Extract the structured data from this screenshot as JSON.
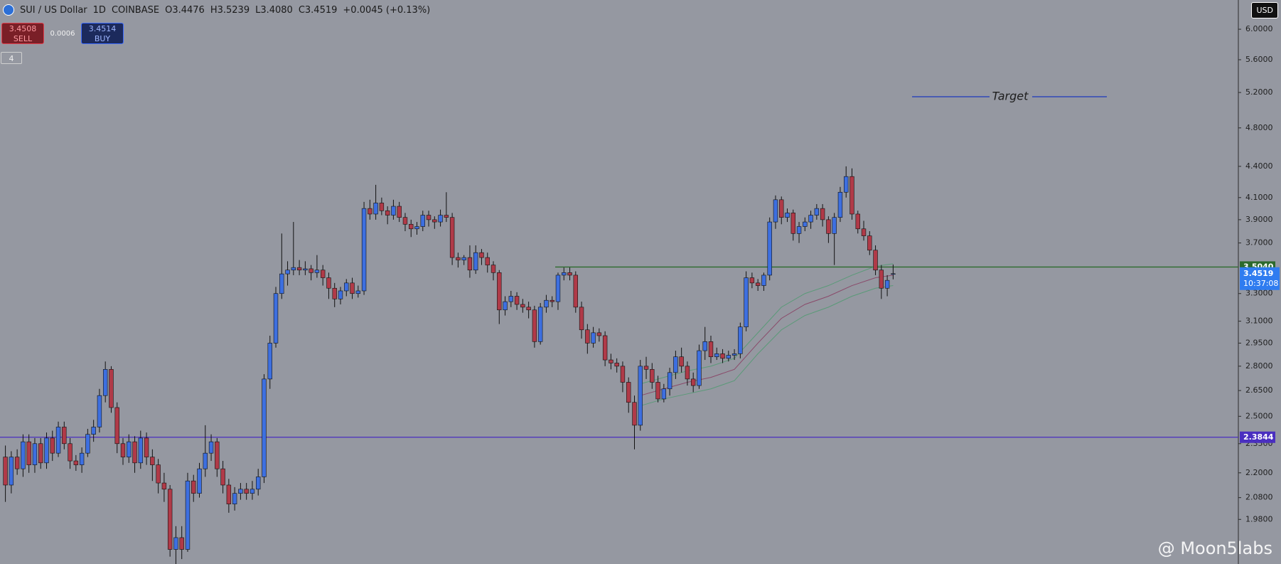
{
  "header": {
    "symbol": "SUI / US Dollar",
    "interval": "1D",
    "exchange": "COINBASE",
    "ohlc": [
      "O3.4476",
      "H3.5239",
      "L3.4080",
      "C3.4519"
    ],
    "change": "+0.0045 (+0.13%)"
  },
  "trade": {
    "sell": {
      "price": "3.4508",
      "label": "SELL"
    },
    "spread": "0.0006",
    "buy": {
      "price": "3.4514",
      "label": "BUY"
    }
  },
  "indicators_toggle": "4",
  "currency": "USD",
  "watermark": "@ Moon5labs",
  "chart_data": {
    "type": "candlestick",
    "log_scale": true,
    "grid": false,
    "ylim": [
      1.79,
      6.41
    ],
    "yticks": [
      {
        "value": 6,
        "label": "6.0000"
      },
      {
        "value": 5.6,
        "label": "5.6000"
      },
      {
        "value": 5.2,
        "label": "5.2000"
      },
      {
        "value": 4.8,
        "label": "4.8000"
      },
      {
        "value": 4.4,
        "label": "4.4000"
      },
      {
        "value": 4.1,
        "label": "4.1000"
      },
      {
        "value": 3.9,
        "label": "3.9000"
      },
      {
        "value": 3.7,
        "label": "3.7000"
      },
      {
        "value": 3.3,
        "label": "3.3000"
      },
      {
        "value": 3.1,
        "label": "3.1000"
      },
      {
        "value": 2.95,
        "label": "2.9500"
      },
      {
        "value": 2.8,
        "label": "2.8000"
      },
      {
        "value": 2.65,
        "label": "2.6500"
      },
      {
        "value": 2.5,
        "label": "2.5000"
      },
      {
        "value": 2.35,
        "label": "2.3500"
      },
      {
        "value": 2.2,
        "label": "2.2000"
      },
      {
        "value": 2.08,
        "label": "2.0800"
      },
      {
        "value": 1.98,
        "label": "1.9800"
      }
    ],
    "up_color": "#3d6fe0",
    "down_color": "#b03a48",
    "series": {
      "open": [
        2.28,
        2.14,
        2.28,
        2.22,
        2.36,
        2.24,
        2.35,
        2.25,
        2.38,
        2.3,
        2.44,
        2.35,
        2.26,
        2.24,
        2.3,
        2.4,
        2.44,
        2.62,
        2.78,
        2.55,
        2.35,
        2.28,
        2.36,
        2.25,
        2.38,
        2.28,
        2.24,
        2.15,
        2.12,
        1.85,
        1.9,
        1.85,
        2.16,
        2.1,
        2.22,
        2.3,
        2.36,
        2.22,
        2.14,
        2.05,
        2.1,
        2.12,
        2.1,
        2.12,
        2.18,
        2.72,
        2.95,
        3.3,
        3.45,
        3.48,
        3.5,
        3.48,
        3.49,
        3.46,
        3.48,
        3.42,
        3.34,
        3.26,
        3.32,
        3.38,
        3.3,
        3.32,
        4.0,
        3.95,
        4.05,
        3.98,
        3.94,
        4.02,
        3.92,
        3.86,
        3.82,
        3.84,
        3.94,
        3.9,
        3.88,
        3.94,
        3.92,
        3.58,
        3.56,
        3.58,
        3.48,
        3.62,
        3.58,
        3.52,
        3.46,
        3.18,
        3.24,
        3.28,
        3.22,
        3.2,
        3.18,
        2.96,
        3.2,
        3.25,
        3.24,
        3.44,
        3.46,
        3.44,
        3.2,
        3.04,
        2.95,
        3.02,
        3.0,
        2.84,
        2.82,
        2.8,
        2.7,
        2.58,
        2.45,
        2.8,
        2.78,
        2.7,
        2.6,
        2.66,
        2.76,
        2.86,
        2.8,
        2.72,
        2.68,
        2.9,
        2.96,
        2.86,
        2.88,
        2.85,
        2.87,
        2.88,
        3.06,
        3.42,
        3.38,
        3.36,
        3.44,
        3.88,
        4.08,
        3.92,
        3.96,
        3.78,
        3.84,
        3.88,
        3.94,
        4.0,
        3.9,
        3.78,
        3.92,
        4.15,
        4.3,
        3.95,
        3.82,
        3.76,
        3.64,
        3.48,
        3.34,
        3.4476
      ],
      "high": [
        2.34,
        2.31,
        2.32,
        2.4,
        2.4,
        2.38,
        2.38,
        2.41,
        2.42,
        2.47,
        2.47,
        2.38,
        2.29,
        2.33,
        2.43,
        2.48,
        2.66,
        2.83,
        2.8,
        2.58,
        2.38,
        2.4,
        2.39,
        2.42,
        2.41,
        2.32,
        2.27,
        2.2,
        2.14,
        1.95,
        1.95,
        2.2,
        2.19,
        2.25,
        2.45,
        2.4,
        2.38,
        2.26,
        2.17,
        2.13,
        2.15,
        2.15,
        2.16,
        2.22,
        2.75,
        3.0,
        3.35,
        3.78,
        3.55,
        3.88,
        3.56,
        3.55,
        3.52,
        3.6,
        3.52,
        3.46,
        3.38,
        3.35,
        3.41,
        3.42,
        3.36,
        4.06,
        4.08,
        4.22,
        4.1,
        4.02,
        4.08,
        4.06,
        3.96,
        3.9,
        3.88,
        3.98,
        3.98,
        3.93,
        3.99,
        4.15,
        3.96,
        3.62,
        3.6,
        3.68,
        3.68,
        3.65,
        3.62,
        3.55,
        3.48,
        3.28,
        3.32,
        3.31,
        3.26,
        3.24,
        3.21,
        3.23,
        3.29,
        3.28,
        3.46,
        3.5,
        3.5,
        3.47,
        3.24,
        3.08,
        3.06,
        3.05,
        3.03,
        2.88,
        2.85,
        2.83,
        2.73,
        2.62,
        2.84,
        2.86,
        2.82,
        2.74,
        2.69,
        2.79,
        2.9,
        2.92,
        2.83,
        2.76,
        2.94,
        3.06,
        3.0,
        2.92,
        2.91,
        2.9,
        2.91,
        3.09,
        3.47,
        3.46,
        3.41,
        3.46,
        3.92,
        4.12,
        4.11,
        4.0,
        3.99,
        3.88,
        3.92,
        3.98,
        4.04,
        4.04,
        3.93,
        3.96,
        4.2,
        4.4,
        4.38,
        3.98,
        3.89,
        3.8,
        3.68,
        3.52,
        3.44,
        3.5239
      ],
      "low": [
        2.06,
        2.1,
        2.19,
        2.18,
        2.2,
        2.2,
        2.22,
        2.22,
        2.26,
        2.28,
        2.32,
        2.22,
        2.21,
        2.2,
        2.28,
        2.36,
        2.41,
        2.58,
        2.52,
        2.3,
        2.24,
        2.25,
        2.2,
        2.22,
        2.24,
        2.16,
        2.1,
        2.06,
        1.82,
        1.78,
        1.81,
        1.84,
        2.06,
        2.08,
        2.18,
        2.26,
        2.18,
        2.1,
        2.01,
        2.02,
        2.07,
        2.07,
        2.07,
        2.09,
        2.15,
        2.66,
        2.92,
        3.26,
        3.36,
        3.44,
        3.44,
        3.44,
        3.4,
        3.42,
        3.36,
        3.26,
        3.2,
        3.22,
        3.28,
        3.26,
        3.27,
        3.29,
        3.9,
        3.9,
        3.94,
        3.86,
        3.9,
        3.88,
        3.8,
        3.75,
        3.77,
        3.8,
        3.84,
        3.82,
        3.84,
        3.88,
        3.52,
        3.5,
        3.52,
        3.42,
        3.45,
        3.52,
        3.46,
        3.4,
        3.08,
        3.14,
        3.2,
        3.18,
        3.16,
        3.12,
        2.92,
        2.94,
        3.16,
        3.2,
        3.18,
        3.4,
        3.4,
        3.16,
        2.98,
        2.88,
        2.92,
        2.96,
        2.8,
        2.78,
        2.76,
        2.64,
        2.52,
        2.32,
        2.42,
        2.72,
        2.66,
        2.58,
        2.58,
        2.62,
        2.72,
        2.76,
        2.68,
        2.64,
        2.66,
        2.84,
        2.82,
        2.84,
        2.82,
        2.83,
        2.84,
        2.85,
        3.03,
        3.34,
        3.32,
        3.32,
        3.4,
        3.82,
        3.86,
        3.88,
        3.72,
        3.7,
        3.8,
        3.82,
        3.9,
        3.84,
        3.7,
        3.52,
        3.88,
        4.1,
        3.9,
        3.78,
        3.72,
        3.6,
        3.44,
        3.26,
        3.28,
        3.408
      ],
      "close": [
        2.14,
        2.28,
        2.22,
        2.36,
        2.24,
        2.35,
        2.25,
        2.38,
        2.3,
        2.44,
        2.35,
        2.26,
        2.24,
        2.3,
        2.4,
        2.44,
        2.62,
        2.78,
        2.55,
        2.35,
        2.28,
        2.36,
        2.25,
        2.38,
        2.28,
        2.24,
        2.15,
        2.12,
        1.85,
        1.9,
        1.85,
        2.16,
        2.1,
        2.22,
        2.3,
        2.36,
        2.22,
        2.14,
        2.05,
        2.1,
        2.12,
        2.1,
        2.12,
        2.18,
        2.72,
        2.95,
        3.3,
        3.45,
        3.48,
        3.5,
        3.48,
        3.49,
        3.46,
        3.48,
        3.42,
        3.34,
        3.26,
        3.32,
        3.38,
        3.3,
        3.32,
        4.0,
        3.95,
        4.05,
        3.98,
        3.94,
        4.02,
        3.92,
        3.86,
        3.82,
        3.84,
        3.94,
        3.9,
        3.88,
        3.94,
        3.92,
        3.58,
        3.56,
        3.58,
        3.48,
        3.62,
        3.58,
        3.52,
        3.46,
        3.18,
        3.24,
        3.28,
        3.22,
        3.2,
        3.18,
        2.96,
        3.2,
        3.25,
        3.24,
        3.44,
        3.46,
        3.44,
        3.2,
        3.04,
        2.95,
        3.02,
        3.0,
        2.84,
        2.82,
        2.8,
        2.7,
        2.58,
        2.45,
        2.8,
        2.78,
        2.7,
        2.6,
        2.66,
        2.76,
        2.86,
        2.8,
        2.72,
        2.68,
        2.9,
        2.96,
        2.86,
        2.88,
        2.85,
        2.87,
        2.88,
        3.06,
        3.42,
        3.38,
        3.36,
        3.44,
        3.88,
        4.08,
        3.92,
        3.96,
        3.78,
        3.84,
        3.88,
        3.94,
        4.0,
        3.9,
        3.78,
        3.92,
        4.15,
        4.3,
        3.95,
        3.82,
        3.76,
        3.64,
        3.48,
        3.34,
        3.4,
        3.4519
      ]
    },
    "band": {
      "x": [
        108,
        112,
        116,
        120,
        124,
        128,
        132,
        136,
        140,
        144,
        148,
        151
      ],
      "upper": [
        2.69,
        2.73,
        2.77,
        2.8,
        2.85,
        3.02,
        3.2,
        3.3,
        3.36,
        3.44,
        3.51,
        3.53
      ],
      "middle": [
        2.62,
        2.66,
        2.7,
        2.73,
        2.78,
        2.95,
        3.12,
        3.22,
        3.28,
        3.36,
        3.42,
        3.44
      ],
      "lower": [
        2.56,
        2.6,
        2.63,
        2.66,
        2.71,
        2.88,
        3.04,
        3.14,
        3.2,
        3.28,
        3.34,
        3.36
      ],
      "edge_color": "#5a9a78",
      "middle_color": "#8a4a6a"
    },
    "levels": [
      {
        "value": 3.504,
        "label": "3.5040",
        "color": "#2d6a2d"
      },
      {
        "value": 2.3844,
        "label": "2.3844",
        "color": "#4a2fc0"
      }
    ],
    "last_price": {
      "value": 3.4519,
      "label": "3.4519",
      "countdown": "10:37:08",
      "color": "#2f7cf0"
    },
    "annotations": [
      {
        "text": "Target",
        "value": 5.15,
        "color": "#3048b8"
      }
    ]
  }
}
